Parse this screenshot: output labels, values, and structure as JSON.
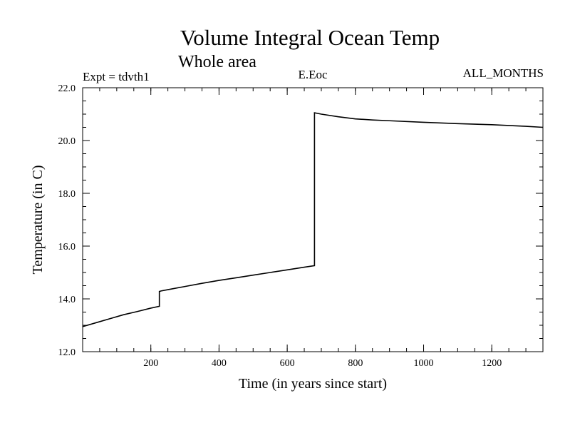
{
  "chart_data": {
    "type": "line",
    "title": "Volume Integral Ocean Temp",
    "subtitle": "Whole area",
    "header_left": "Expt = tdvth1",
    "header_center": "E.Eoc",
    "header_right": "ALL_MONTHS",
    "xlabel": "Time (in years since start)",
    "ylabel": "Temperature (in C)",
    "xlim": [
      0,
      1350
    ],
    "ylim": [
      12.0,
      22.0
    ],
    "x_ticks": [
      200,
      400,
      600,
      800,
      1000,
      1200
    ],
    "x_tick_labels": [
      "200",
      "400",
      "600",
      "800",
      "1000",
      "1200"
    ],
    "y_ticks": [
      12.0,
      14.0,
      16.0,
      18.0,
      20.0,
      22.0
    ],
    "y_tick_labels": [
      "12.0",
      "14.0",
      "16.0",
      "18.0",
      "20.0",
      "22.0"
    ],
    "x_minor_step": 50,
    "y_minor_step": 0.5,
    "grid": false,
    "line_color": "#000000",
    "series": [
      {
        "name": "Volume integral ocean temperature",
        "x": [
          0,
          40,
          80,
          120,
          160,
          200,
          225,
          225,
          230,
          250,
          300,
          350,
          400,
          450,
          500,
          550,
          600,
          650,
          680,
          680,
          700,
          750,
          800,
          850,
          900,
          1000,
          1100,
          1200,
          1300,
          1350
        ],
        "y": [
          12.95,
          13.1,
          13.25,
          13.4,
          13.52,
          13.65,
          13.72,
          14.28,
          14.3,
          14.35,
          14.47,
          14.59,
          14.7,
          14.8,
          14.9,
          15.0,
          15.1,
          15.2,
          15.26,
          21.05,
          21.0,
          20.9,
          20.82,
          20.78,
          20.75,
          20.69,
          20.64,
          20.6,
          20.54,
          20.5
        ]
      }
    ]
  }
}
